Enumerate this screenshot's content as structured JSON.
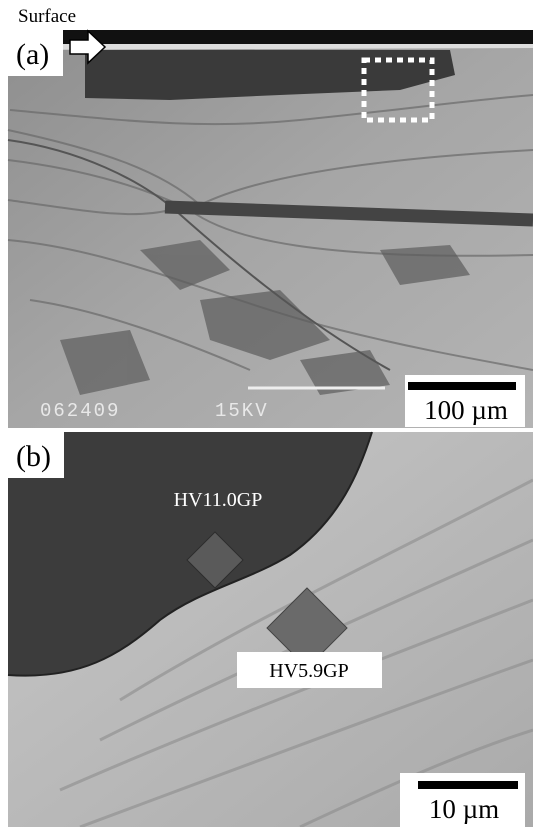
{
  "panels": [
    {
      "label": "(a)",
      "annotation": "Surface",
      "scale_bar": "100 µm",
      "footer": [
        "062409",
        "15KV"
      ]
    },
    {
      "label": "(b)",
      "indents": [
        "HV11.0GP",
        "HV5.9GP"
      ],
      "scale_bar": "10 µm"
    }
  ]
}
